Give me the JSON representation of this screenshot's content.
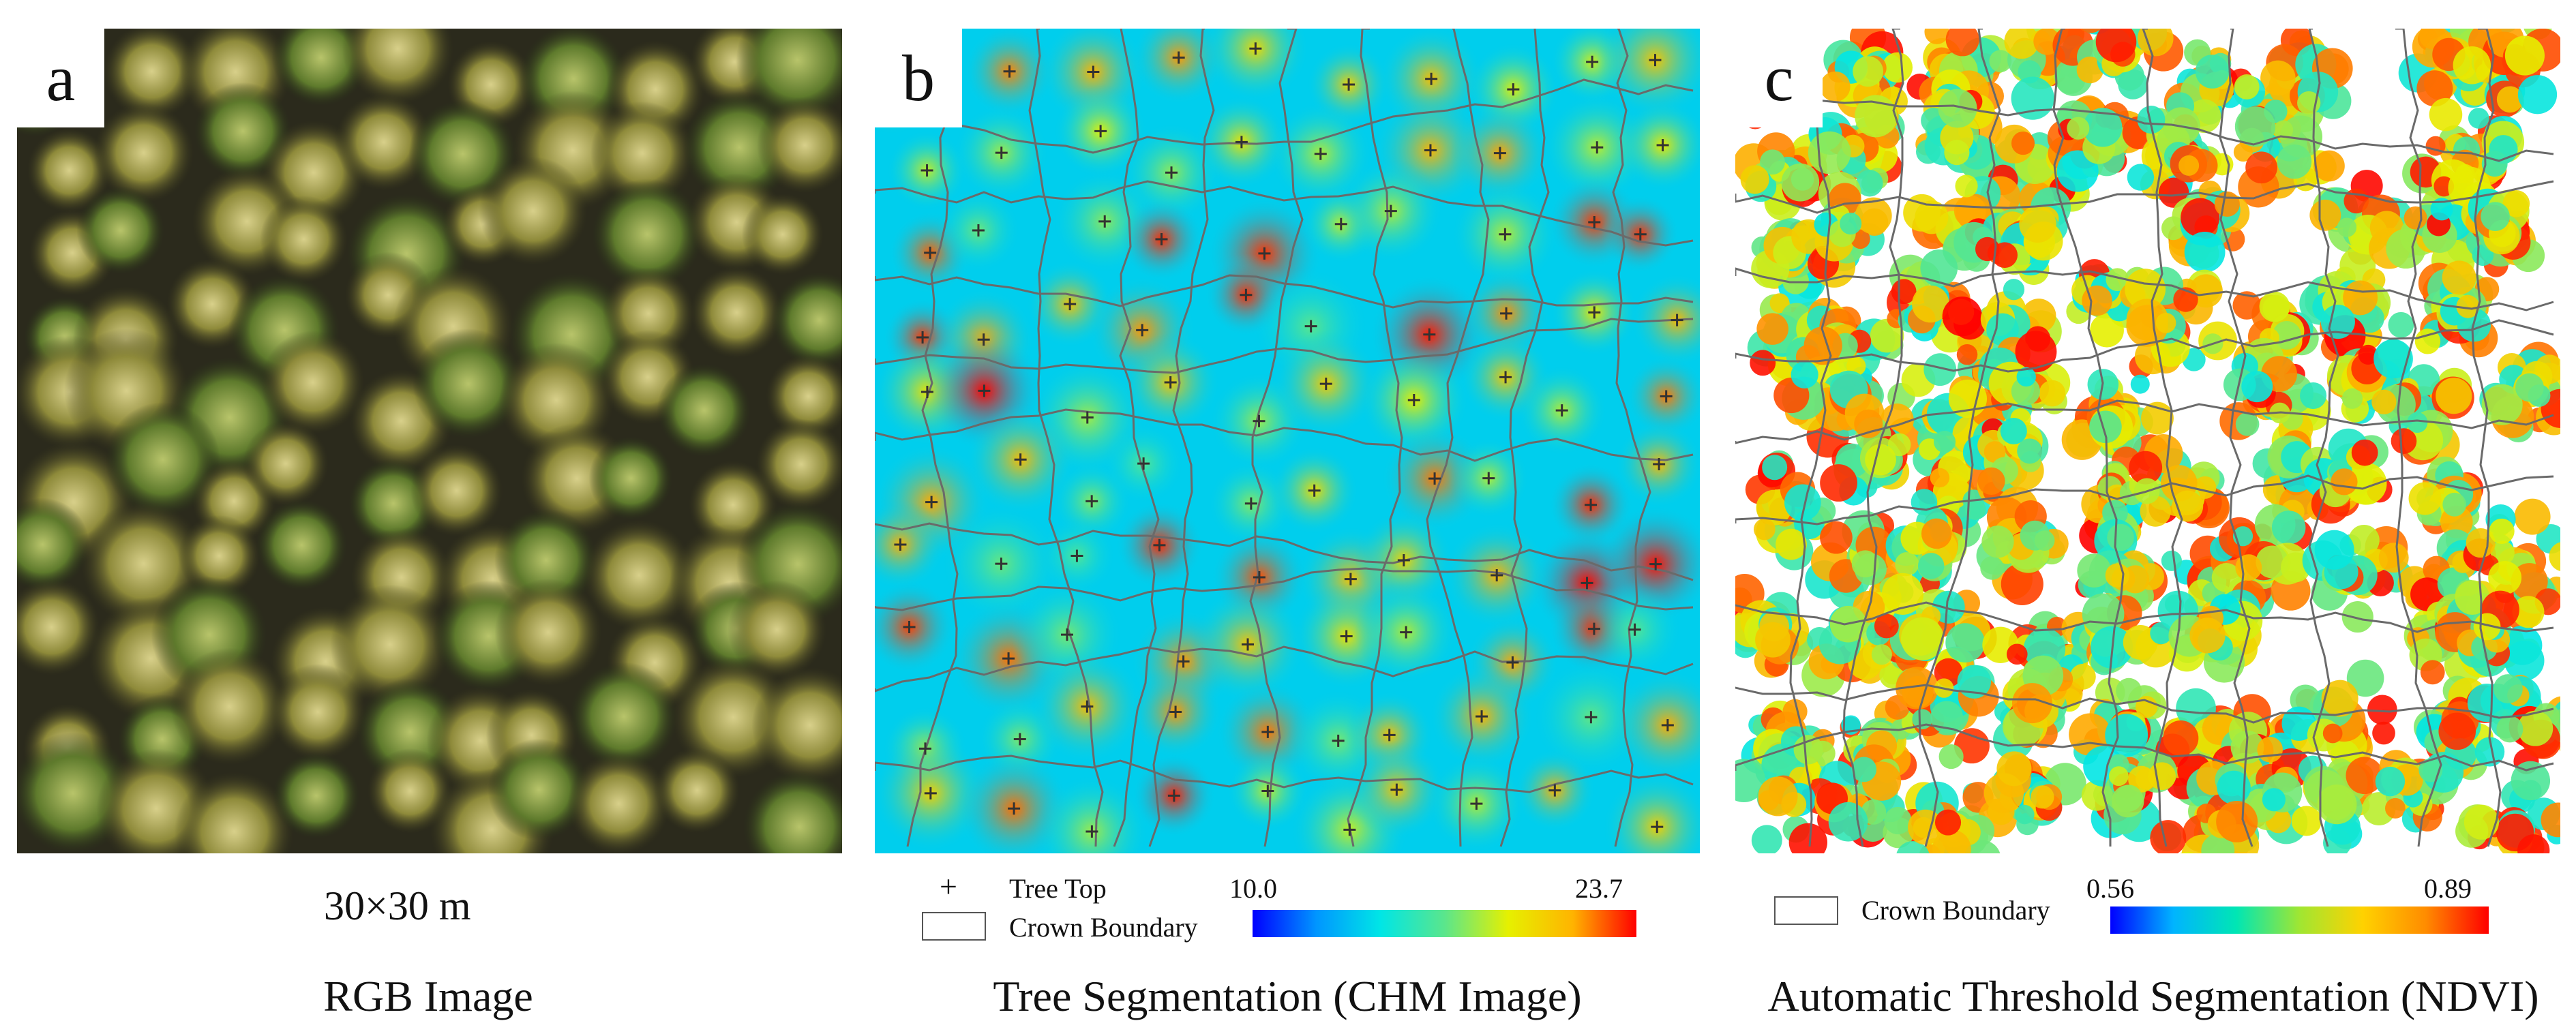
{
  "panels": [
    {
      "letter": "a",
      "scale": "30×30 m",
      "caption": "RGB Image"
    },
    {
      "letter": "b",
      "caption": "Tree Segmentation (CHM Image)",
      "legend": {
        "tree_top_label": "Tree Top",
        "crown_boundary_label": "Crown Boundary"
      },
      "colorbar": {
        "min": "10.0",
        "max": "23.7",
        "colors": [
          "#0000ff",
          "#0096ff",
          "#00e6e6",
          "#5ae68c",
          "#e6f000",
          "#ffb400",
          "#ff0000"
        ]
      }
    },
    {
      "letter": "c",
      "caption": "Automatic Threshold Segmentation (NDVI)",
      "legend": {
        "crown_boundary_label": "Crown Boundary"
      },
      "colorbar": {
        "min": "0.56",
        "max": "0.89",
        "colors": [
          "#0000ff",
          "#00b4ff",
          "#00e6b4",
          "#a0e632",
          "#ffd200",
          "#ff8c00",
          "#ff0000"
        ]
      }
    }
  ]
}
